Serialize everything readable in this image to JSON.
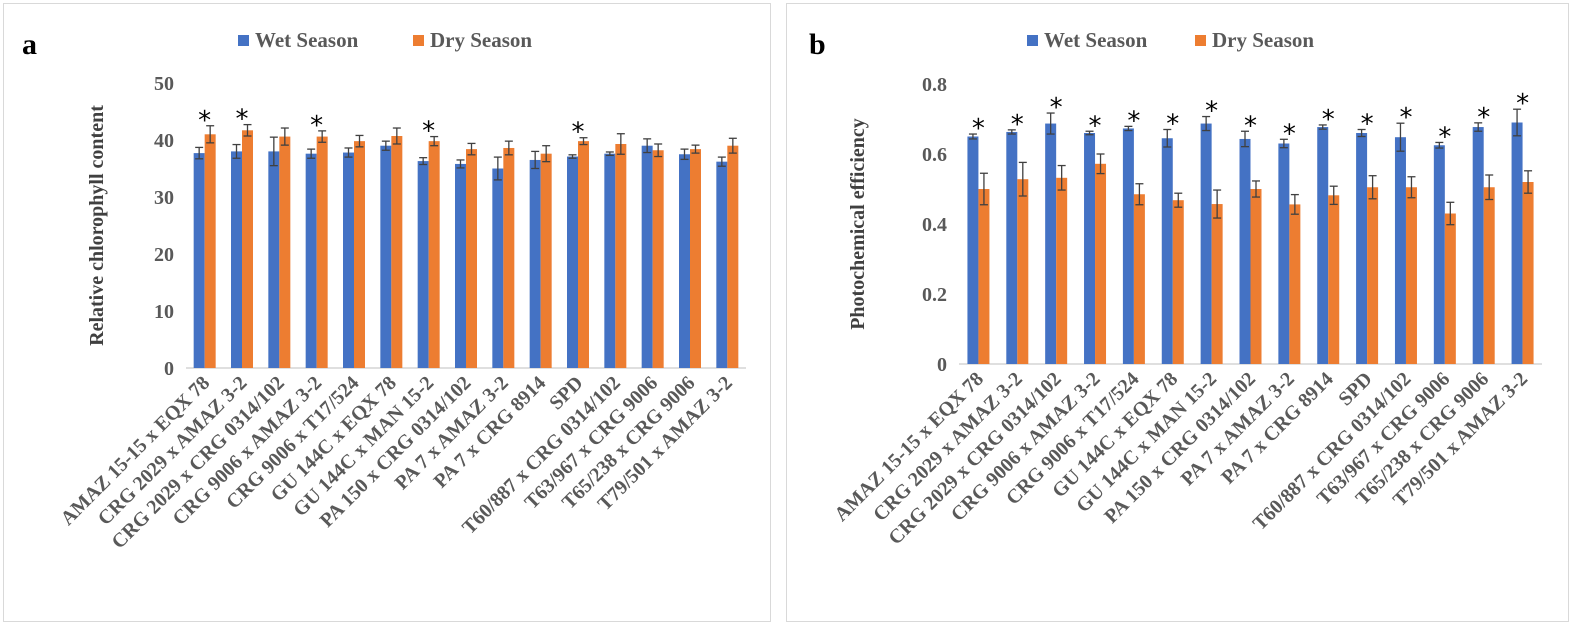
{
  "colors": {
    "wet": "#4472C4",
    "dry": "#ED7D31",
    "axis": "#bfbfbf",
    "errorbar": "#404040"
  },
  "chart_data": [
    {
      "panel_label": "a",
      "type": "bar",
      "ylabel": "Relative chlorophyll content",
      "ylim": [
        0,
        50
      ],
      "yticks": [
        "0",
        "10",
        "20",
        "30",
        "40",
        "50"
      ],
      "ytick_values": [
        0,
        10,
        20,
        30,
        40,
        50
      ],
      "legend_position": "top",
      "categories": [
        "AMAZ 15-15 x EQX 78",
        "CRG 2029 x AMAZ 3-2",
        "CRG 2029 x CRG 0314/102",
        "CRG 9006 x AMAZ 3-2",
        "CRG 9006 x T17/524",
        "GU 144C x EQX 78",
        "GU 144C x MAN 15-2",
        "PA 150 x CRG 0314/102",
        "PA 7 x AMAZ 3-2",
        "PA 7 x CRG 8914",
        "SPD",
        "T60/887 x CRG 0314/102",
        "T63/967 x CRG 9006",
        "T65/238 x CRG 9006",
        "T79/501 x AMAZ 3-2"
      ],
      "series": [
        {
          "name": "Wet Season",
          "values": [
            37.7,
            38.0,
            38.0,
            37.6,
            37.8,
            39.0,
            36.3,
            35.8,
            35.0,
            36.5,
            37.1,
            37.6,
            39.0,
            37.5,
            36.2
          ],
          "errors": [
            1.0,
            1.2,
            2.5,
            0.8,
            0.8,
            0.8,
            0.6,
            0.7,
            2.0,
            1.5,
            0.3,
            0.3,
            1.2,
            0.9,
            0.8
          ]
        },
        {
          "name": "Dry Season",
          "values": [
            41.0,
            41.7,
            40.6,
            40.6,
            39.8,
            40.7,
            39.8,
            38.4,
            38.6,
            37.6,
            39.8,
            39.3,
            38.2,
            38.4,
            39.0
          ],
          "errors": [
            1.5,
            1.0,
            1.5,
            1.0,
            1.0,
            1.4,
            0.8,
            1.0,
            1.2,
            1.4,
            0.6,
            1.8,
            1.1,
            0.7,
            1.3
          ]
        }
      ],
      "significant": [
        "*",
        "*",
        "",
        "*",
        "",
        "",
        "*",
        "",
        "",
        "",
        "*",
        "",
        "",
        "",
        ""
      ]
    },
    {
      "panel_label": "b",
      "type": "bar",
      "ylabel": "Photochemical efficiency",
      "ylim": [
        0,
        0.8
      ],
      "yticks": [
        "0",
        "0.2",
        "0.4",
        "0.6",
        "0.8"
      ],
      "ytick_values": [
        0,
        0.2,
        0.4,
        0.6,
        0.8
      ],
      "legend_position": "top",
      "categories": [
        "AMAZ 15-15 x EQX 78",
        "CRG 2029 x AMAZ 3-2",
        "CRG 2029 x CRG 0314/102",
        "CRG 9006 x AMAZ 3-2",
        "CRG 9006 x T17/524",
        "GU 144C x EQX 78",
        "GU 144C x MAN 15-2",
        "PA 150 x CRG 0314/102",
        "PA 7 x AMAZ 3-2",
        "PA 7 x CRG 8914",
        "SPD",
        "T60/887 x CRG 0314/102",
        "T63/967 x CRG 9006",
        "T65/238 x CRG 9006",
        "T79/501 x AMAZ 3-2"
      ],
      "series": [
        {
          "name": "Wet Season",
          "values": [
            0.65,
            0.663,
            0.687,
            0.66,
            0.673,
            0.645,
            0.687,
            0.643,
            0.63,
            0.677,
            0.66,
            0.648,
            0.625,
            0.677,
            0.69
          ],
          "errors": [
            0.007,
            0.006,
            0.03,
            0.005,
            0.006,
            0.025,
            0.02,
            0.022,
            0.012,
            0.006,
            0.01,
            0.04,
            0.008,
            0.012,
            0.038
          ]
        },
        {
          "name": "Dry Season",
          "values": [
            0.5,
            0.528,
            0.532,
            0.572,
            0.485,
            0.468,
            0.457,
            0.5,
            0.456,
            0.482,
            0.505,
            0.505,
            0.43,
            0.505,
            0.52
          ],
          "errors": [
            0.045,
            0.048,
            0.035,
            0.028,
            0.03,
            0.02,
            0.04,
            0.023,
            0.028,
            0.026,
            0.033,
            0.03,
            0.032,
            0.035,
            0.032
          ]
        }
      ],
      "significant": [
        "*",
        "*",
        "*",
        "*",
        "*",
        "*",
        "*",
        "*",
        "*",
        "*",
        "*",
        "*",
        "*",
        "*",
        "*"
      ]
    }
  ]
}
